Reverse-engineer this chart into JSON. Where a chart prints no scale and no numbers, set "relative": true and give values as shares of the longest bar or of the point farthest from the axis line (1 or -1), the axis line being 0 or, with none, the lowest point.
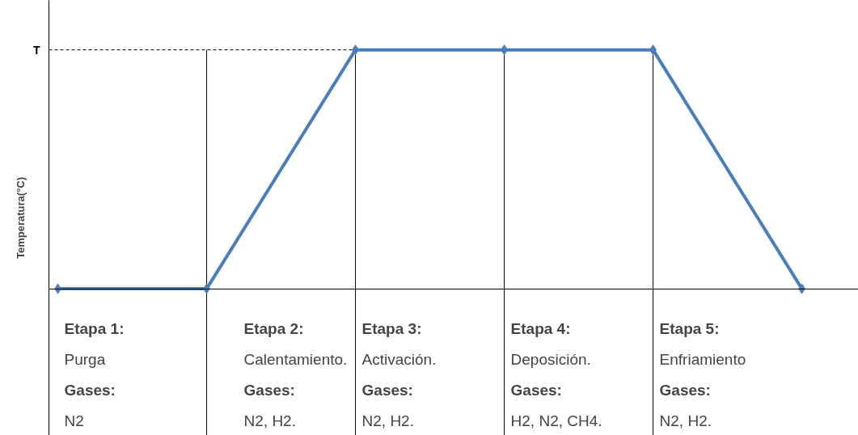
{
  "chart_data": {
    "type": "line",
    "relative": true,
    "ylabel": "Temperatura(°C)",
    "categories": [
      null,
      null,
      null,
      null,
      null,
      null
    ],
    "series": [
      {
        "color": "#4a7ebb",
        "values": [
          0,
          0,
          1,
          1,
          1,
          0
        ]
      }
    ],
    "marker": "diamond",
    "line_style": "solid",
    "grid": "x",
    "ref_lines": [
      {
        "axis": "y",
        "value": 1,
        "label": "T",
        "line_style": "dashed",
        "color": "#000000"
      }
    ],
    "annotations": [
      "Etapa 1:\nPurga\nGases:\nN2",
      "Etapa 2:\nCalentamiento.\nGases:\nN2, H2.",
      "Etapa 3:\nActivación.\nGases:\n N2, H2.",
      "Etapa 4:\nDeposición.\nGases:\nH2, N2, CH4.",
      "Etapa 5:\nEnfriamiento\nGases:\nN2, H2."
    ]
  }
}
